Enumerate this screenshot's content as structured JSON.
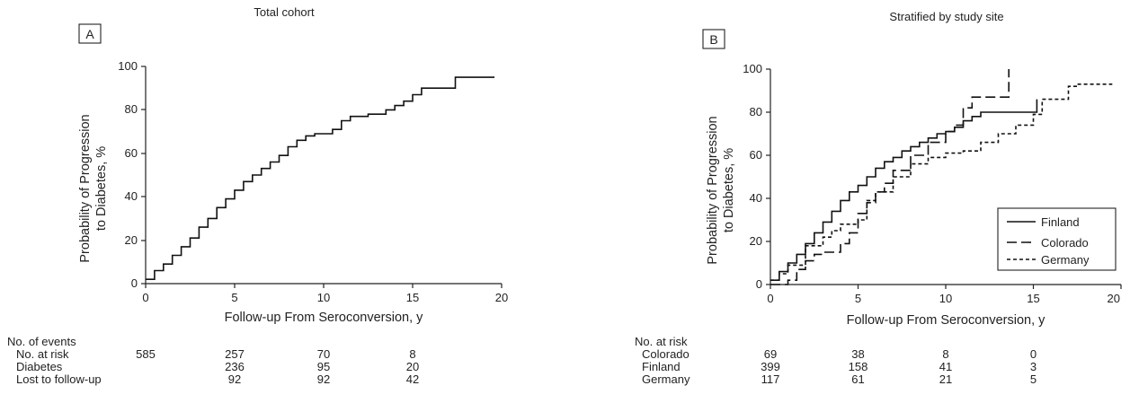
{
  "panels": [
    {
      "letter": "A",
      "title": "Total cohort",
      "ylabel_line1": "Probability of Progression",
      "ylabel_line2": "to Diabetes, %",
      "xlabel": "Follow-up From Seroconversion, y",
      "x_ticks": [
        "0",
        "5",
        "10",
        "15",
        "20"
      ],
      "y_ticks": [
        "0",
        "20",
        "40",
        "60",
        "80",
        "100"
      ],
      "table": {
        "header": "No. of events",
        "rows": [
          {
            "label": "No. at risk",
            "values": [
              "585",
              "257",
              "70",
              "8"
            ]
          },
          {
            "label": "Diabetes",
            "values": [
              "",
              "236",
              "95",
              "20"
            ]
          },
          {
            "label": "Lost to follow-up",
            "values": [
              "",
              "92",
              "92",
              "42"
            ]
          }
        ]
      }
    },
    {
      "letter": "B",
      "title": "Stratified by study site",
      "ylabel_line1": "Probability of Progression",
      "ylabel_line2": "to Diabetes, %",
      "xlabel": "Follow-up From Seroconversion, y",
      "x_ticks": [
        "0",
        "5",
        "10",
        "15",
        "20"
      ],
      "y_ticks": [
        "0",
        "20",
        "40",
        "60",
        "80",
        "100"
      ],
      "legend": [
        "Finland",
        "Colorado",
        "Germany"
      ],
      "table": {
        "header": "No. at risk",
        "rows": [
          {
            "label": "Colorado",
            "values": [
              "69",
              "38",
              "8",
              "0"
            ]
          },
          {
            "label": "Finland",
            "values": [
              "399",
              "158",
              "41",
              "3"
            ]
          },
          {
            "label": "Germany",
            "values": [
              "117",
              "61",
              "21",
              "5"
            ]
          }
        ]
      }
    }
  ],
  "chart_data": [
    {
      "type": "line",
      "title": "Total cohort",
      "xlabel": "Follow-up From Seroconversion, y",
      "ylabel": "Probability of Progression to Diabetes, %",
      "xlim": [
        0,
        20
      ],
      "ylim": [
        0,
        100
      ],
      "grid": false,
      "series": [
        {
          "x": [
            0,
            0.5,
            1,
            1.5,
            2,
            2.5,
            3,
            3.5,
            4,
            4.5,
            5,
            5.5,
            6,
            6.5,
            7,
            7.5,
            8,
            8.5,
            9,
            9.5,
            10,
            10.5,
            11,
            11.5,
            12,
            12.5,
            13,
            13.5,
            14,
            14.5,
            15,
            15.5,
            16,
            16.5,
            17,
            17.4,
            18,
            19.6
          ],
          "y": [
            2,
            6,
            9,
            13,
            17,
            21,
            26,
            30,
            35,
            39,
            43,
            47,
            50,
            53,
            56,
            59,
            63,
            66,
            68,
            69,
            69,
            71,
            75,
            77,
            77,
            78,
            78,
            80,
            82,
            84,
            87,
            90,
            90,
            90,
            90,
            95,
            95,
            95
          ],
          "style": "solid"
        }
      ]
    },
    {
      "type": "line",
      "title": "Stratified by study site",
      "xlabel": "Follow-up From Seroconversion, y",
      "ylabel": "Probability of Progression to Diabetes, %",
      "xlim": [
        0,
        20
      ],
      "ylim": [
        0,
        100
      ],
      "grid": false,
      "legend": "lower-right",
      "series": [
        {
          "name": "Finland",
          "style": "solid",
          "x": [
            0,
            0.5,
            1,
            1.5,
            2,
            2.5,
            3,
            3.5,
            4,
            4.5,
            5,
            5.5,
            6,
            6.5,
            7,
            7.5,
            8,
            8.5,
            9,
            9.5,
            10,
            10.5,
            11,
            11.5,
            12,
            13,
            14,
            15,
            15.2
          ],
          "y": [
            2,
            6,
            10,
            14,
            19,
            24,
            29,
            34,
            39,
            43,
            46,
            50,
            54,
            57,
            59,
            62,
            64,
            66,
            68,
            70,
            71,
            73,
            76,
            78,
            80,
            80,
            80,
            80,
            86
          ]
        },
        {
          "name": "Colorado",
          "style": "long-dash",
          "x": [
            0,
            1,
            1.5,
            2,
            2.5,
            3,
            4,
            4.5,
            5,
            5.5,
            6,
            6.5,
            7,
            8,
            9,
            10,
            10.5,
            11,
            11.5,
            12,
            13,
            13.6,
            13.6
          ],
          "y": [
            0,
            2,
            7,
            11,
            14,
            15,
            19,
            24,
            33,
            38,
            43,
            47,
            53,
            60,
            66,
            71,
            74,
            82,
            87,
            87,
            87,
            90,
            100
          ]
        },
        {
          "name": "Germany",
          "style": "short-dash",
          "x": [
            0,
            0.5,
            1,
            2,
            3,
            3.5,
            4,
            5,
            5.5,
            6,
            7,
            8,
            9,
            10,
            11,
            12,
            13,
            14,
            15,
            15.5,
            16,
            17,
            17.5,
            19.5
          ],
          "y": [
            2,
            5,
            9,
            18,
            22,
            25,
            28,
            30,
            39,
            43,
            50,
            56,
            59,
            61,
            62,
            66,
            70,
            74,
            79,
            86,
            86,
            92,
            93,
            93
          ]
        }
      ]
    }
  ]
}
